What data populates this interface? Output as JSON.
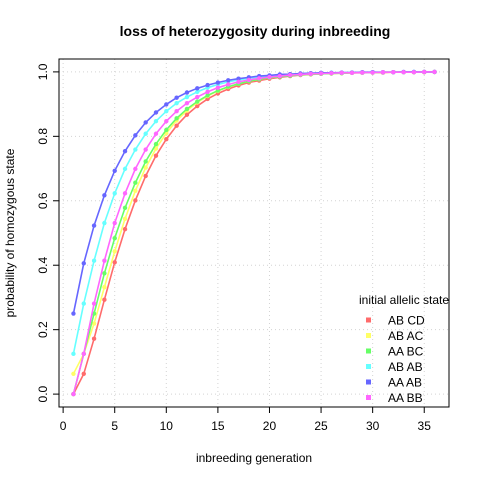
{
  "chart_data": {
    "type": "line",
    "title": "loss of heterozygosity during inbreeding",
    "xlabel": "inbreeding generation",
    "ylabel": "probability of homozygous state",
    "xlim": [
      -0.4,
      37.4
    ],
    "ylim": [
      -0.04,
      1.04
    ],
    "xticks": [
      0,
      5,
      10,
      15,
      20,
      25,
      30,
      35
    ],
    "yticks": [
      0.0,
      0.2,
      0.4,
      0.6,
      0.8,
      1.0
    ],
    "xtick_labels": [
      "0",
      "5",
      "10",
      "15",
      "20",
      "25",
      "30",
      "35"
    ],
    "ytick_labels": [
      "0.0",
      "0.2",
      "0.4",
      "0.6",
      "0.8",
      "1.0"
    ],
    "grid": true,
    "legend": {
      "title": "initial allelic state",
      "position": "right"
    },
    "x": [
      1,
      2,
      3,
      4,
      5,
      6,
      7,
      8,
      9,
      10,
      11,
      12,
      13,
      14,
      15,
      16,
      17,
      18,
      19,
      20,
      21,
      22,
      23,
      24,
      25,
      26,
      27,
      28,
      29,
      30,
      31,
      32,
      33,
      34,
      35,
      36
    ],
    "series": [
      {
        "name": "AB  CD",
        "color": "#FF6B6B",
        "values": [
          0,
          0.063,
          0.172,
          0.293,
          0.409,
          0.512,
          0.601,
          0.677,
          0.74,
          0.791,
          0.833,
          0.867,
          0.894,
          0.916,
          0.933,
          0.947,
          0.958,
          0.967,
          0.973,
          0.979,
          0.983,
          0.987,
          0.99,
          0.992,
          0.994,
          0.995,
          0.996,
          0.997,
          0.997,
          0.998,
          0.998,
          0.999,
          0.999,
          0.999,
          0.999,
          1.0
        ]
      },
      {
        "name": "AB  AC",
        "color": "#FFFF66",
        "values": [
          0.063,
          0.125,
          0.219,
          0.332,
          0.443,
          0.544,
          0.631,
          0.703,
          0.762,
          0.81,
          0.849,
          0.88,
          0.905,
          0.925,
          0.941,
          0.953,
          0.963,
          0.971,
          0.977,
          0.982,
          0.986,
          0.989,
          0.991,
          0.993,
          0.994,
          0.995,
          0.996,
          0.997,
          0.998,
          0.998,
          0.999,
          0.999,
          0.999,
          0.999,
          1.0,
          1.0
        ]
      },
      {
        "name": "AA  BC",
        "color": "#66FF66",
        "values": [
          0,
          0.125,
          0.25,
          0.375,
          0.484,
          0.578,
          0.656,
          0.722,
          0.776,
          0.82,
          0.856,
          0.885,
          0.908,
          0.927,
          0.942,
          0.954,
          0.963,
          0.971,
          0.977,
          0.982,
          0.985,
          0.988,
          0.991,
          0.993,
          0.994,
          0.995,
          0.996,
          0.997,
          0.998,
          0.998,
          0.999,
          0.999,
          0.999,
          0.999,
          1.0,
          1.0
        ]
      },
      {
        "name": "AB  AB",
        "color": "#66FFFF",
        "values": [
          0.125,
          0.281,
          0.414,
          0.531,
          0.623,
          0.699,
          0.759,
          0.808,
          0.847,
          0.878,
          0.903,
          0.922,
          0.938,
          0.951,
          0.961,
          0.969,
          0.975,
          0.98,
          0.984,
          0.987,
          0.99,
          0.992,
          0.994,
          0.995,
          0.996,
          0.997,
          0.997,
          0.998,
          0.998,
          0.999,
          0.999,
          0.999,
          0.999,
          1.0,
          1.0,
          1.0
        ]
      },
      {
        "name": "AA  AB",
        "color": "#6666FF",
        "values": [
          0.25,
          0.406,
          0.523,
          0.617,
          0.693,
          0.754,
          0.803,
          0.843,
          0.874,
          0.899,
          0.92,
          0.936,
          0.949,
          0.959,
          0.967,
          0.974,
          0.979,
          0.983,
          0.987,
          0.989,
          0.992,
          0.993,
          0.995,
          0.996,
          0.997,
          0.997,
          0.998,
          0.998,
          0.999,
          0.999,
          0.999,
          0.999,
          1.0,
          1.0,
          1.0,
          1.0
        ]
      },
      {
        "name": "AA  BB",
        "color": "#FF66FF",
        "values": [
          0,
          0.125,
          0.281,
          0.414,
          0.531,
          0.623,
          0.699,
          0.759,
          0.808,
          0.847,
          0.878,
          0.903,
          0.922,
          0.938,
          0.951,
          0.961,
          0.969,
          0.975,
          0.98,
          0.984,
          0.987,
          0.99,
          0.992,
          0.994,
          0.995,
          0.996,
          0.997,
          0.997,
          0.998,
          0.998,
          0.999,
          0.999,
          0.999,
          0.999,
          1.0,
          1.0
        ]
      }
    ]
  }
}
